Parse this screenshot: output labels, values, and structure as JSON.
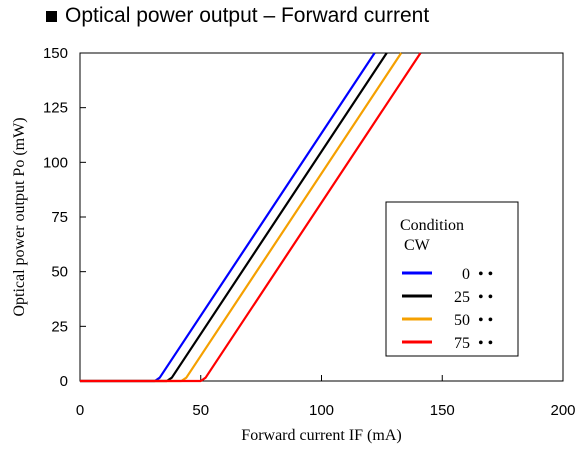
{
  "chart_data": {
    "type": "line",
    "title": "Optical power output – Forward current",
    "xlabel": "Forward current IF (mA)",
    "ylabel": "Optical power output Po (mW)",
    "xlim": [
      0,
      200
    ],
    "ylim": [
      0,
      150
    ],
    "x_ticks": [
      "0",
      "50",
      "100",
      "150",
      "200"
    ],
    "y_ticks": [
      "0",
      "25",
      "50",
      "75",
      "100",
      "125",
      "150"
    ],
    "grid": false,
    "legend": {
      "placement": "right",
      "title_line1": "Condition",
      "title_line2": "CW",
      "suffix": "• •"
    },
    "series": [
      {
        "name": "0",
        "color": "#0000ff",
        "x": [
          0,
          31,
          33,
          122
        ],
        "y": [
          0,
          0,
          1.5,
          150
        ]
      },
      {
        "name": "25",
        "color": "#000000",
        "x": [
          0,
          36,
          38,
          127
        ],
        "y": [
          0,
          0,
          1.5,
          150
        ]
      },
      {
        "name": "50",
        "color": "#f5a000",
        "x": [
          0,
          42,
          44,
          133
        ],
        "y": [
          0,
          0,
          1.5,
          150
        ]
      },
      {
        "name": "75",
        "color": "#ff0000",
        "x": [
          0,
          50,
          52,
          141
        ],
        "y": [
          0,
          0,
          1.5,
          150
        ]
      }
    ]
  }
}
